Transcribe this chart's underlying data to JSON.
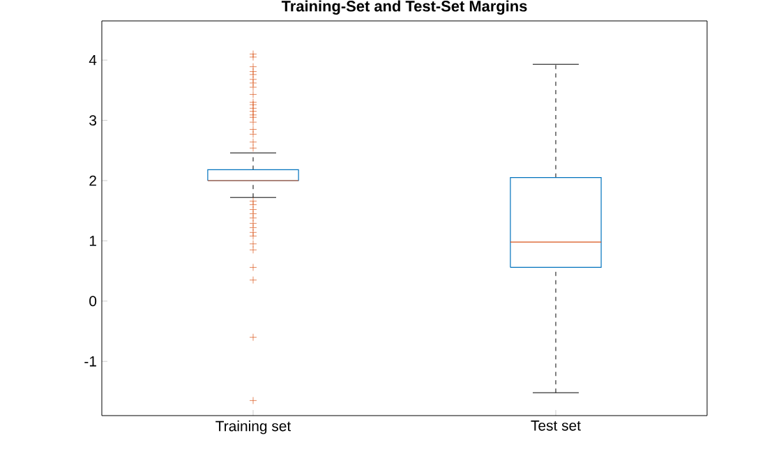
{
  "chart_data": {
    "type": "box",
    "title": "Training-Set and Test-Set Margins",
    "categories": [
      "Training set",
      "Test set"
    ],
    "ylim": [
      -1.9,
      4.65
    ],
    "yticks": [
      -1,
      0,
      1,
      2,
      3,
      4
    ],
    "marker": "cross",
    "line_style": "dashed",
    "series": [
      {
        "color": "#0072bd",
        "boxes": [
          {
            "low": 1.72,
            "q1": 2.0,
            "median": 2.0,
            "q3": 2.18,
            "high": 2.46,
            "outliers": [
              4.1,
              4.05,
              3.89,
              3.81,
              3.76,
              3.68,
              3.62,
              3.55,
              3.43,
              3.3,
              3.26,
              3.2,
              3.15,
              3.09,
              3.05,
              2.97,
              2.85,
              2.77,
              2.64,
              2.54,
              1.66,
              1.6,
              1.52,
              1.45,
              1.38,
              1.29,
              1.22,
              1.14,
              1.08,
              0.95,
              0.85,
              0.56,
              0.35,
              -0.6,
              -1.65
            ]
          },
          {
            "low": -1.52,
            "q1": 0.56,
            "median": 0.98,
            "q3": 2.05,
            "high": 3.93
          }
        ]
      }
    ]
  }
}
